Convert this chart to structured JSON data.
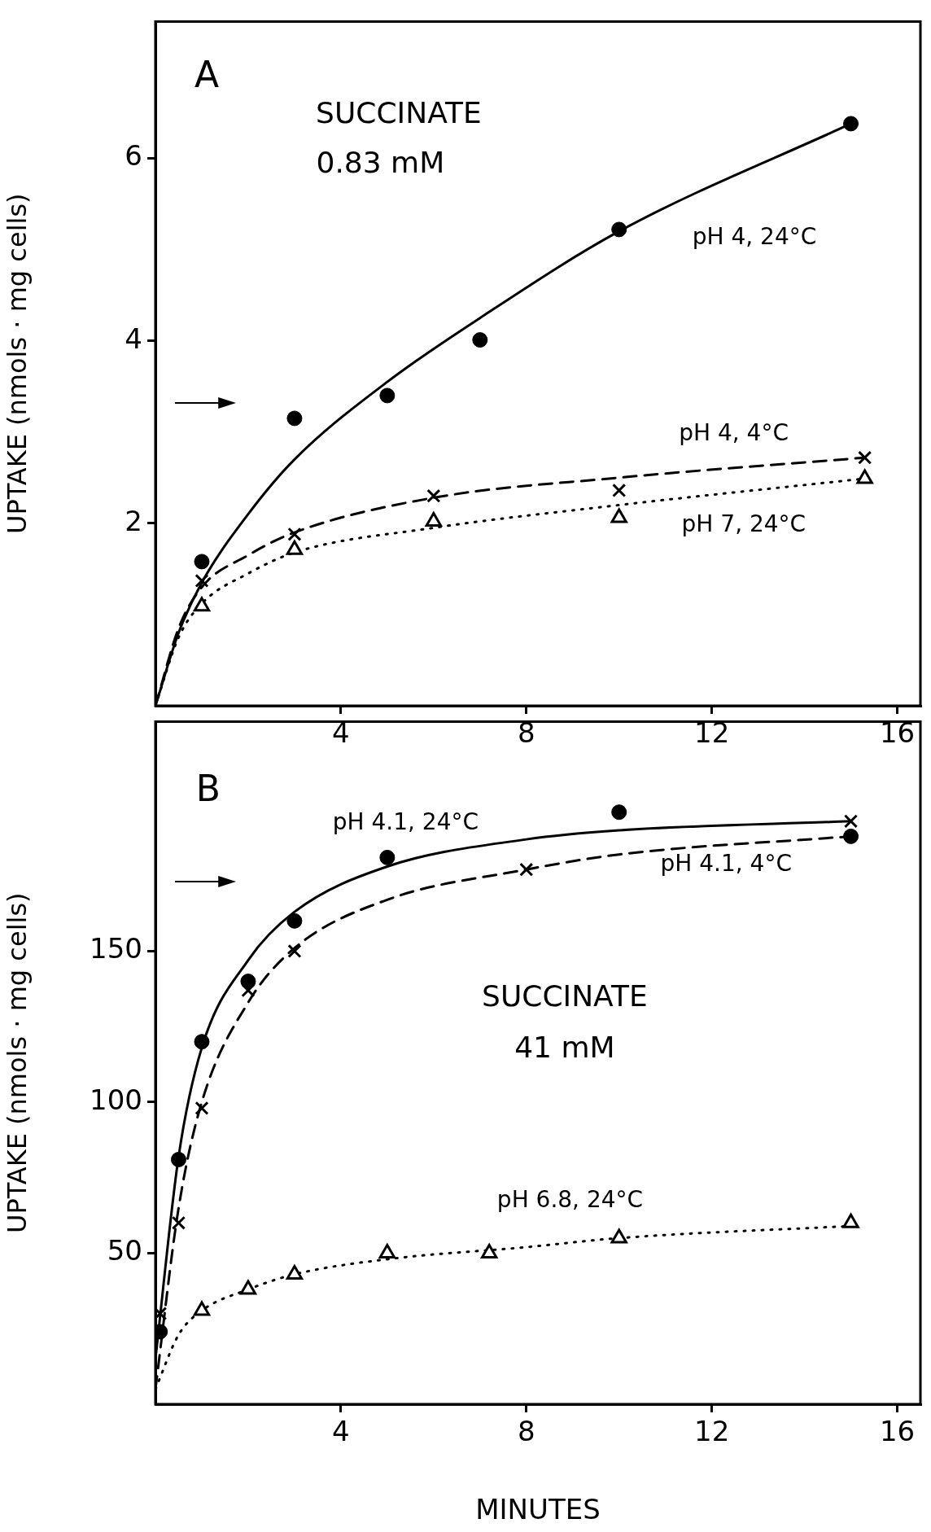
{
  "chart_data": [
    {
      "type": "scatter",
      "ylabel": "UPTAKE (nmols · mg cells)",
      "annotations": [
        "A",
        "SUCCINATE",
        "0.83 mM"
      ],
      "xlim": [
        0,
        16.5
      ],
      "xticks": [
        4,
        8,
        12,
        16
      ],
      "ylim": [
        0,
        7.5
      ],
      "yticks": [
        2,
        4,
        6
      ],
      "series": [
        {
          "name": "pH 4, 24°C",
          "color": "#000000",
          "marker": "circle",
          "x": [
            1,
            3,
            5,
            7,
            10,
            15
          ],
          "values": [
            1.58,
            3.15,
            3.4,
            4.01,
            5.22,
            6.38
          ]
        },
        {
          "name": "pH 4, 4°C",
          "color": "#000000",
          "marker": "cross",
          "x": [
            1,
            3,
            6,
            10,
            15.3
          ],
          "values": [
            1.37,
            1.88,
            2.3,
            2.36,
            2.72
          ]
        },
        {
          "name": "pH 7, 24°C",
          "color": "#000000",
          "marker": "triangle",
          "x": [
            1,
            3,
            6,
            10,
            15.3
          ],
          "values": [
            1.09,
            1.71,
            2.02,
            2.06,
            2.49
          ]
        },
        {
          "type": "line",
          "color": "#000000",
          "marker": "none",
          "line_style": "solid",
          "x": [
            0,
            0.5,
            1,
            2,
            3,
            5,
            7,
            10,
            15
          ],
          "values": [
            0,
            0.8,
            1.35,
            2.1,
            2.7,
            3.55,
            4.25,
            5.2,
            6.38
          ]
        },
        {
          "type": "line",
          "color": "#000000",
          "marker": "none",
          "line_style": "dashed",
          "x": [
            0,
            0.5,
            1,
            2,
            3,
            6,
            10,
            15.3
          ],
          "values": [
            0,
            0.85,
            1.3,
            1.65,
            1.9,
            2.28,
            2.5,
            2.72
          ]
        },
        {
          "type": "line",
          "color": "#000000",
          "marker": "none",
          "line_style": "dotted",
          "x": [
            0,
            0.5,
            1,
            2,
            3,
            6,
            10,
            15.3
          ],
          "values": [
            0,
            0.75,
            1.12,
            1.45,
            1.68,
            1.95,
            2.2,
            2.49
          ]
        }
      ]
    },
    {
      "type": "scatter",
      "xlabel": "MINUTES",
      "ylabel": "UPTAKE (nmols · mg cells)",
      "annotations": [
        "B",
        "SUCCINATE",
        "41 mM"
      ],
      "xlim": [
        0,
        16.5
      ],
      "xticks": [
        4,
        8,
        12,
        16
      ],
      "ylim": [
        0,
        226
      ],
      "yticks": [
        50,
        100,
        150
      ],
      "series": [
        {
          "name": "pH 4.1, 24°C",
          "color": "#000000",
          "marker": "circle",
          "x": [
            0.1,
            0.5,
            1,
            2,
            3,
            5,
            10,
            15
          ],
          "values": [
            24,
            81,
            120,
            140,
            160,
            181,
            196,
            188
          ]
        },
        {
          "color": "#000000",
          "marker": "cross",
          "x": [
            0.1,
            0.5,
            1,
            2,
            3,
            8,
            15
          ],
          "values": [
            30,
            60,
            98,
            137,
            150,
            177,
            193
          ]
        },
        {
          "name": "pH 6.8, 24°C",
          "color": "#000000",
          "marker": "triangle",
          "x": [
            1,
            2,
            3,
            5,
            7.2,
            10,
            15
          ],
          "values": [
            31,
            38,
            43,
            50,
            50,
            55,
            60
          ]
        },
        {
          "type": "line",
          "color": "#000000",
          "marker": "none",
          "line_style": "solid",
          "x": [
            0,
            0.5,
            1,
            2,
            3,
            5,
            8,
            10,
            15
          ],
          "values": [
            15,
            82,
            118,
            147,
            163,
            178,
            187,
            190,
            193
          ]
        },
        {
          "name": "pH 4.1, 4°C",
          "type": "line",
          "color": "#000000",
          "marker": "none",
          "line_style": "dashed",
          "x": [
            0,
            0.5,
            1,
            2,
            3,
            5,
            8,
            10,
            15
          ],
          "values": [
            5,
            65,
            100,
            133,
            151,
            167,
            177,
            182,
            188
          ]
        },
        {
          "type": "line",
          "color": "#000000",
          "marker": "none",
          "line_style": "dotted",
          "x": [
            0,
            0.5,
            1,
            2,
            3,
            5,
            8,
            10,
            15
          ],
          "values": [
            5,
            23,
            31,
            38,
            43,
            48,
            52,
            55,
            59
          ]
        }
      ]
    }
  ]
}
